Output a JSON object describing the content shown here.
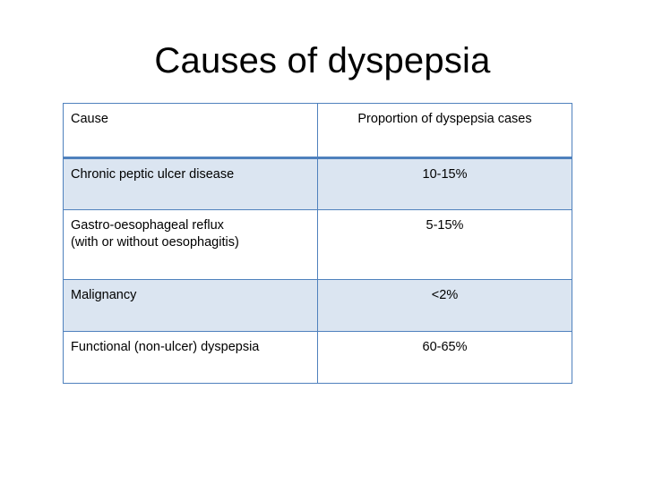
{
  "slide": {
    "title": "Causes of dyspepsia"
  },
  "table": {
    "headers": {
      "cause": "Cause",
      "proportion": "Proportion of dyspepsia cases"
    },
    "rows": [
      {
        "cause_line1": "Chronic peptic ulcer disease",
        "cause_line2": "",
        "proportion": "10-15%"
      },
      {
        "cause_line1": "Gastro-oesophageal reflux",
        "cause_line2": "(with or without oesophagitis)",
        "proportion": "5-15%"
      },
      {
        "cause_line1": "Malignancy",
        "cause_line2": "",
        "proportion": "<2%"
      },
      {
        "cause_line1": "Functional (non-ulcer) dyspepsia",
        "cause_line2": "",
        "proportion": "60-65%"
      }
    ],
    "colors": {
      "border": "#4f81bd",
      "shaded_row": "#dbe5f1"
    }
  }
}
